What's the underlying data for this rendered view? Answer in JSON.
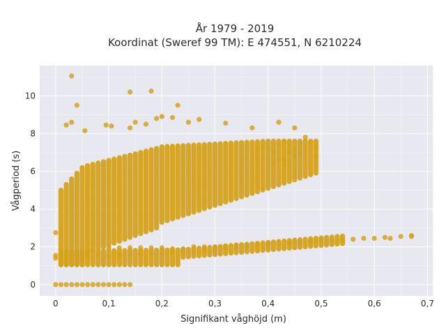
{
  "chart_data": {
    "type": "scatter",
    "title_line1": "År 1979 - 2019",
    "title_line2": "Koordinat (Sweref 99 TM): E 474551, N 6210224",
    "xlabel": "Signifikant våghöjd (m)",
    "ylabel": "Vågperiod (s)",
    "xlim": [
      -0.03,
      0.71
    ],
    "ylim": [
      -0.6,
      11.6
    ],
    "xticks": [
      "0",
      "0,1",
      "0,2",
      "0,3",
      "0,4",
      "0,5",
      "0,6",
      "0,7"
    ],
    "yticks": [
      "0",
      "2",
      "4",
      "6",
      "8",
      "10"
    ],
    "grid": true,
    "colors": {
      "point": "#D4A21E",
      "plot_bg": "#E8E8F0",
      "grid": "#FFFFFF"
    },
    "points": [
      [
        0,
        0
      ],
      [
        0.01,
        0
      ],
      [
        0.02,
        0
      ],
      [
        0.03,
        0
      ],
      [
        0.04,
        0
      ],
      [
        0.05,
        0
      ],
      [
        0.06,
        0
      ],
      [
        0.07,
        0
      ],
      [
        0.08,
        0
      ],
      [
        0.09,
        0
      ],
      [
        0.1,
        0
      ],
      [
        0.11,
        0
      ],
      [
        0.12,
        0
      ],
      [
        0.13,
        0
      ],
      [
        0.14,
        0
      ],
      [
        0,
        1.4
      ],
      [
        0,
        1.55
      ],
      [
        0,
        2.75
      ],
      [
        0.03,
        11.05
      ],
      [
        0.04,
        9.5
      ],
      [
        0.14,
        10.2
      ],
      [
        0.18,
        10.25
      ],
      [
        0.23,
        9.5
      ],
      [
        0.02,
        8.45
      ],
      [
        0.03,
        8.6
      ],
      [
        0.055,
        8.15
      ],
      [
        0.095,
        8.45
      ],
      [
        0.105,
        8.4
      ],
      [
        0.14,
        8.3
      ],
      [
        0.15,
        8.6
      ],
      [
        0.17,
        8.5
      ],
      [
        0.19,
        8.8
      ],
      [
        0.2,
        8.9
      ],
      [
        0.22,
        8.85
      ],
      [
        0.25,
        8.6
      ],
      [
        0.27,
        8.75
      ],
      [
        0.32,
        8.55
      ],
      [
        0.37,
        8.3
      ],
      [
        0.42,
        8.6
      ],
      [
        0.45,
        8.3
      ],
      [
        0.38,
        7.2
      ],
      [
        0.39,
        7.3
      ],
      [
        0.4,
        7.2
      ],
      [
        0.41,
        7.0
      ],
      [
        0.42,
        7.4
      ],
      [
        0.43,
        7.6
      ],
      [
        0.44,
        7.5
      ],
      [
        0.45,
        7.2
      ],
      [
        0.46,
        7.4
      ],
      [
        0.47,
        7.8
      ],
      [
        0.48,
        7.5
      ],
      [
        0.49,
        7.3
      ],
      [
        0.44,
        7.0
      ],
      [
        0.46,
        7.0
      ],
      [
        0.49,
        6.8
      ],
      [
        0.43,
        6.6
      ],
      [
        0.45,
        6.8
      ],
      [
        0.41,
        6.4
      ],
      [
        0.42,
        6.6
      ],
      [
        0.06,
        1.5
      ],
      [
        0.08,
        1.55
      ],
      [
        0.1,
        1.5
      ],
      [
        0.12,
        1.55
      ],
      [
        0.14,
        1.55
      ],
      [
        0.16,
        1.6
      ],
      [
        0.18,
        1.6
      ],
      [
        0.2,
        1.65
      ],
      [
        0.22,
        1.7
      ],
      [
        0.24,
        1.7
      ],
      [
        0.26,
        1.75
      ],
      [
        0.28,
        1.8
      ],
      [
        0.3,
        1.85
      ],
      [
        0.32,
        1.9
      ],
      [
        0.34,
        1.95
      ],
      [
        0.36,
        2.0
      ],
      [
        0.38,
        2.05
      ],
      [
        0.4,
        2.1
      ],
      [
        0.42,
        2.15
      ],
      [
        0.44,
        2.2
      ],
      [
        0.46,
        2.25
      ],
      [
        0.48,
        2.3
      ],
      [
        0.5,
        2.3
      ],
      [
        0.52,
        2.35
      ],
      [
        0.54,
        2.35
      ],
      [
        0.56,
        2.4
      ],
      [
        0.58,
        2.45
      ],
      [
        0.6,
        2.45
      ],
      [
        0.62,
        2.5
      ],
      [
        0.63,
        2.45
      ],
      [
        0.65,
        2.55
      ],
      [
        0.67,
        2.55
      ],
      [
        0.67,
        2.6
      ],
      [
        0.1,
        1.95
      ],
      [
        0.12,
        1.95
      ],
      [
        0.14,
        1.95
      ],
      [
        0.16,
        1.95
      ],
      [
        0.18,
        1.95
      ],
      [
        0.2,
        1.95
      ],
      [
        0.22,
        1.9
      ],
      [
        0.24,
        1.9
      ],
      [
        0.26,
        2.0
      ],
      [
        0.28,
        2.0
      ],
      [
        0.3,
        2.0
      ],
      [
        0.32,
        2.05
      ],
      [
        0.34,
        2.1
      ],
      [
        0.36,
        2.1
      ],
      [
        0.38,
        2.15
      ],
      [
        0.4,
        2.2
      ],
      [
        0.42,
        2.2
      ],
      [
        0.44,
        2.25
      ],
      [
        0.46,
        2.3
      ],
      [
        0.48,
        2.3
      ]
    ]
  }
}
